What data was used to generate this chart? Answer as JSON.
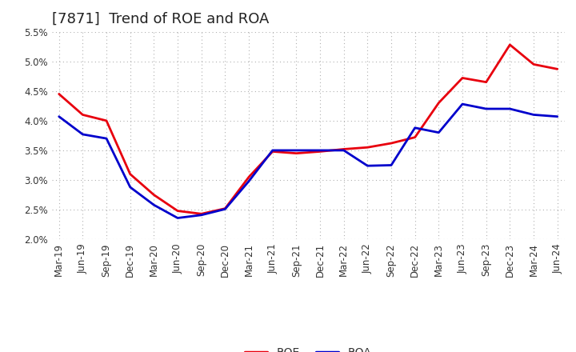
{
  "title": "[7871]  Trend of ROE and ROA",
  "labels": [
    "Mar-19",
    "Jun-19",
    "Sep-19",
    "Dec-19",
    "Mar-20",
    "Jun-20",
    "Sep-20",
    "Dec-20",
    "Mar-21",
    "Jun-21",
    "Sep-21",
    "Dec-21",
    "Mar-22",
    "Jun-22",
    "Sep-22",
    "Dec-22",
    "Mar-23",
    "Jun-23",
    "Sep-23",
    "Dec-23",
    "Mar-24",
    "Jun-24"
  ],
  "roe": [
    4.45,
    4.1,
    4.0,
    3.1,
    2.75,
    2.48,
    2.43,
    2.52,
    3.05,
    3.48,
    3.45,
    3.48,
    3.52,
    3.55,
    3.62,
    3.72,
    4.3,
    4.72,
    4.65,
    5.28,
    4.95,
    4.87
  ],
  "roa": [
    4.07,
    3.77,
    3.7,
    2.88,
    2.58,
    2.36,
    2.41,
    2.51,
    2.98,
    3.5,
    3.5,
    3.5,
    3.5,
    3.24,
    3.25,
    3.88,
    3.8,
    4.28,
    4.2,
    4.2,
    4.1,
    4.07
  ],
  "roe_color": "#e8000e",
  "roa_color": "#0000cc",
  "background_color": "#ffffff",
  "grid_color": "#b0b0b0",
  "ylim": [
    2.0,
    5.5
  ],
  "yticks": [
    2.0,
    2.5,
    3.0,
    3.5,
    4.0,
    4.5,
    5.0,
    5.5
  ],
  "line_width": 2.0,
  "title_fontsize": 13,
  "tick_fontsize": 8.5,
  "legend_fontsize": 10
}
